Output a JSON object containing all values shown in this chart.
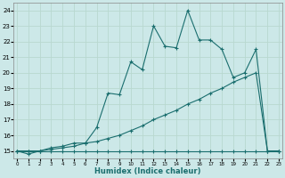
{
  "xlabel": "Humidex (Indice chaleur)",
  "bg_color": "#cce8e8",
  "grid_color": "#b8d8d0",
  "line_color": "#1a6e6e",
  "xlim_min": -0.3,
  "xlim_max": 23.3,
  "ylim_min": 14.5,
  "ylim_max": 24.5,
  "xticks": [
    0,
    1,
    2,
    3,
    4,
    5,
    6,
    7,
    8,
    9,
    10,
    11,
    12,
    13,
    14,
    15,
    16,
    17,
    18,
    19,
    20,
    21,
    22,
    23
  ],
  "yticks": [
    15,
    16,
    17,
    18,
    19,
    20,
    21,
    22,
    23,
    24
  ],
  "line1_x": [
    0,
    1,
    2,
    3,
    4,
    5,
    6,
    7,
    8,
    9,
    10,
    11,
    12,
    13,
    14,
    15,
    16,
    17,
    18,
    19,
    20,
    21,
    22,
    23
  ],
  "line1_y": [
    15.0,
    14.8,
    15.0,
    15.2,
    15.3,
    15.5,
    15.5,
    16.5,
    18.7,
    18.6,
    20.7,
    20.2,
    23.0,
    21.7,
    21.6,
    24.0,
    22.1,
    22.1,
    21.5,
    19.7,
    20.0,
    21.5,
    15.0,
    15.0
  ],
  "line2_x": [
    0,
    1,
    2,
    3,
    4,
    5,
    6,
    7,
    8,
    9,
    10,
    11,
    12,
    13,
    14,
    15,
    16,
    17,
    18,
    19,
    20,
    21,
    22,
    23
  ],
  "line2_y": [
    15.0,
    15.0,
    15.0,
    15.1,
    15.2,
    15.3,
    15.5,
    15.6,
    15.8,
    16.0,
    16.3,
    16.6,
    17.0,
    17.3,
    17.6,
    18.0,
    18.3,
    18.7,
    19.0,
    19.4,
    19.7,
    20.0,
    15.0,
    15.0
  ],
  "line3_x": [
    0,
    1,
    2,
    3,
    4,
    5,
    6,
    7,
    8,
    9,
    10,
    11,
    12,
    13,
    14,
    15,
    16,
    17,
    18,
    19,
    20,
    21,
    22,
    23
  ],
  "line3_y": [
    15.0,
    15.0,
    15.0,
    15.0,
    15.0,
    15.0,
    15.0,
    15.0,
    15.0,
    15.0,
    15.0,
    15.0,
    15.0,
    15.0,
    15.0,
    15.0,
    15.0,
    15.0,
    15.0,
    15.0,
    15.0,
    15.0,
    15.0,
    15.0
  ]
}
